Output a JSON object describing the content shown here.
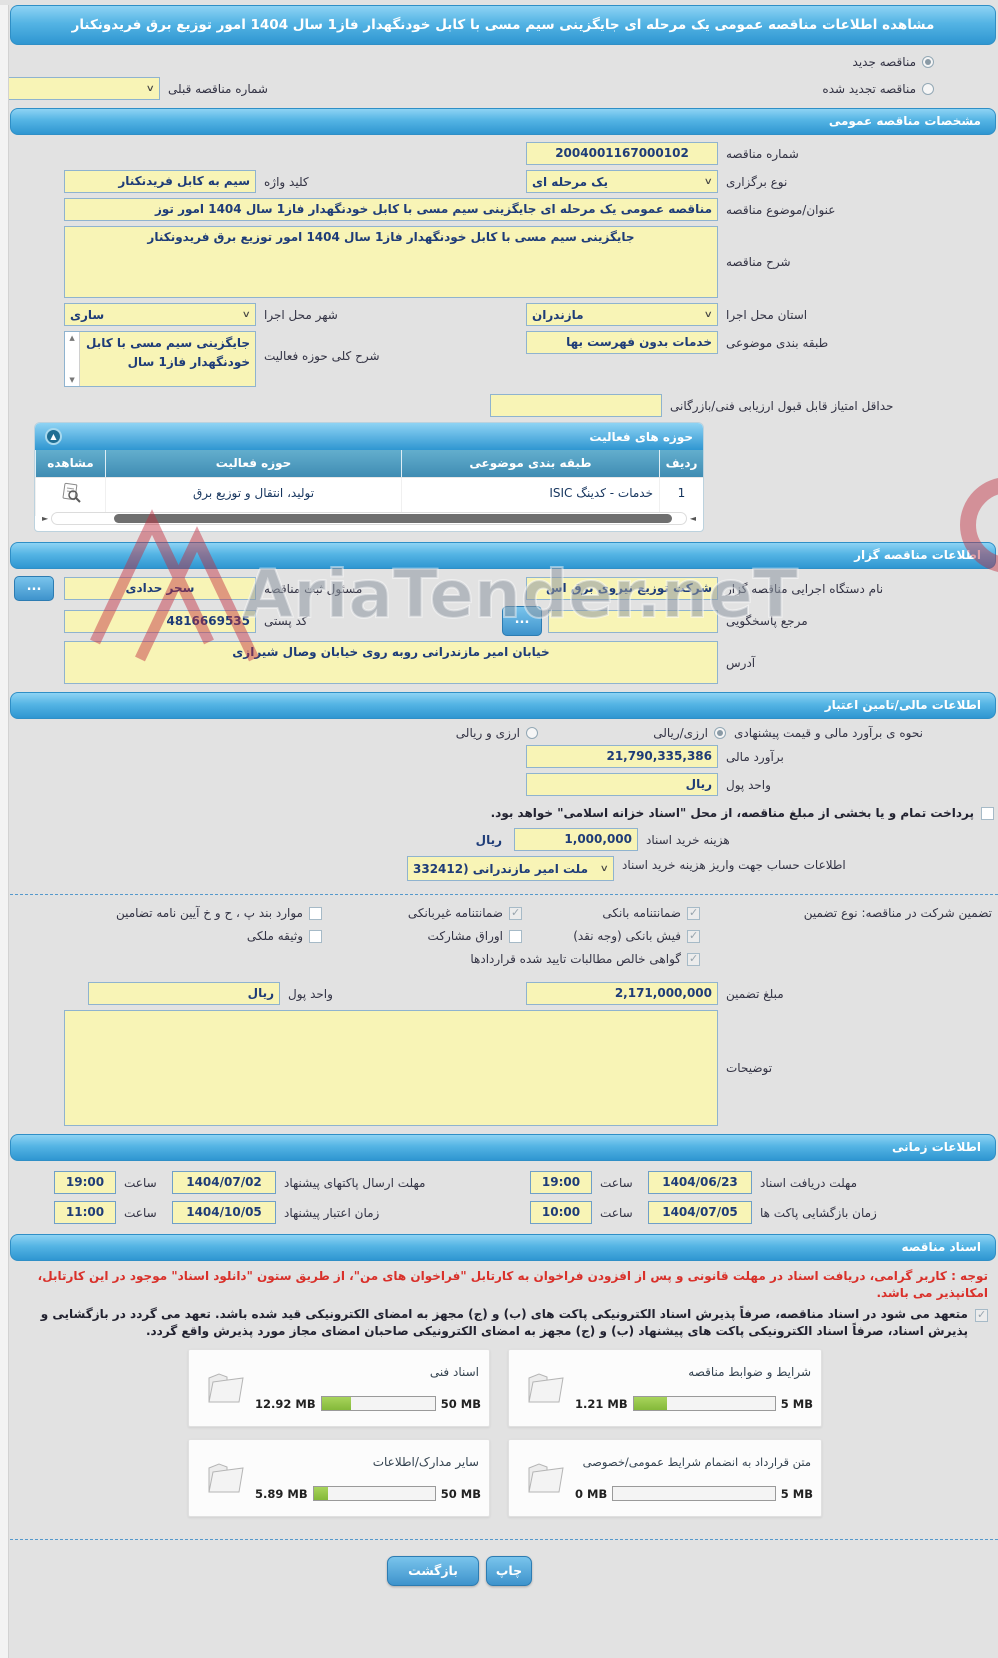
{
  "colors": {
    "accent_blue": "#3e93cc",
    "field_yellow": "#f8f4b6",
    "progress_green": "#8fc43f",
    "notice_red": "#d9302a",
    "header_gradient_top": "#8ed3f4",
    "header_gradient_bottom": "#2f96d1"
  },
  "header": {
    "title": "مشاهده اطلاعات مناقصه عمومی یک مرحله ای جایگزینی سیم مسی با کابل خودنگهدار فاز1 سال 1404 امور توزیع برق فریدونکنار"
  },
  "top": {
    "radio_new": "مناقصه جدید",
    "radio_renewed": "مناقصه تجدید شده",
    "prev_label": "شماره مناقصه قبلی",
    "prev_value": "--"
  },
  "general": {
    "section_title": "مشخصات مناقصه عمومی",
    "tender_no_label": "شماره مناقصه",
    "tender_no": "2004001167000102",
    "type_label": "نوع برگزاری",
    "type_value": "یک مرحله ای",
    "keyword_label": "کلید واژه",
    "keyword_value": "سیم به کابل فریدنکنار",
    "subject_label": "عنوان/موضوع مناقصه",
    "subject_value": "مناقصه عمومی یک مرحله ای جایگزینی سیم مسی با کابل خودنگهدار فاز1 سال 1404 امور توز",
    "desc_label": "شرح مناقصه",
    "desc_value": "جایگزینی سیم مسی با کابل خودنگهدار فاز1 سال 1404 امور توزیع برق فریدونکنار",
    "province_label": "استان محل اجرا",
    "province_value": "مازندران",
    "city_label": "شهر محل اجرا",
    "city_value": "ساری",
    "category_label": "طبقه بندی موضوعی",
    "category_value": "خدمات بدون فهرست بها",
    "activity_label": "شرح کلی حوزه فعالیت",
    "activity_value": "جایگزینی سیم مسی با کابل خودنگهدار فاز1 سال",
    "min_score_label": "حداقل امتیاز قابل قبول ارزیابی فنی/بازرگانی"
  },
  "activity_table": {
    "title": "حوزه های فعالیت",
    "col_row": "ردیف",
    "col_category": "طبقه بندی موضوعی",
    "col_field": "حوزه فعالیت",
    "col_view": "مشاهده",
    "rows": [
      {
        "index": "1",
        "category": "خدمات - کدینگ ISIC",
        "field": "تولید، انتقال و توزیع برق"
      }
    ]
  },
  "tenderer": {
    "section_title": "اطلاعات مناقصه گزار",
    "agency_label": "نام دستگاه اجرایی مناقصه گزار",
    "agency_value": "شرکت توزیع نیروی برق اس",
    "registrar_label": "مسئول ثبت مناقصه",
    "registrar_value": "سحر حدادی",
    "dots": "...",
    "ref_label": "مرجع پاسخگویی",
    "ref_value": "",
    "postal_label": "کد پستی",
    "postal_value": "4816669535",
    "address_label": "آدرس",
    "address_value": "خیابان امیر مازندرانی روبه روی خیابان وصال شیرازی"
  },
  "financial": {
    "section_title": "اطلاعات مالی/تامین اعتبار",
    "method_label": "نحوه ی برآورد مالی و قیمت پیشنهادی",
    "method_opt1": "ارزی/ریالی",
    "method_opt2": "ارزی و ریالی",
    "estimate_label": "برآورد مالی",
    "estimate_value": "21,790,335,386",
    "currency_label": "واحد پول",
    "currency_value": "ریال",
    "treasury_note": "پرداخت تمام و یا بخشی از مبلغ مناقصه، از محل \"اسناد خزانه اسلامی\" خواهد بود.",
    "doc_fee_label": "هزینه خرید اسناد",
    "doc_fee_value": "1,000,000",
    "doc_fee_unit": "ریال",
    "account_label": "اطلاعات حساب جهت واریز هزینه خرید اسناد",
    "account_value": "ملت امیر مازندرانی (332412"
  },
  "guarantee": {
    "row_label": "تضمین شرکت در مناقصه:",
    "type_label": "نوع تضمین",
    "options": [
      {
        "label": "ضمانتنامه بانکی",
        "checked": true
      },
      {
        "label": "ضمانتنامه غیربانکی",
        "checked": true
      },
      {
        "label": "موارد بند پ ، ح و خ آیین نامه تضامین",
        "checked": false
      },
      {
        "label": "فیش بانکی (وجه نقد)",
        "checked": true
      },
      {
        "label": "اوراق مشارکت",
        "checked": false
      },
      {
        "label": "وثیقه ملکی",
        "checked": false
      },
      {
        "label": "گواهی خالص مطالبات تایید شده قراردادها",
        "checked": true
      }
    ],
    "amount_label": "مبلغ تضمین",
    "amount_value": "2,171,000,000",
    "currency_label": "واحد پول",
    "currency_value": "ریال",
    "notes_label": "توضیحات"
  },
  "timing": {
    "section_title": "اطلاعات زمانی",
    "hour_label": "ساعت",
    "rows": [
      {
        "label": "مهلت دریافت اسناد",
        "date": "1404/06/23",
        "time": "19:00"
      },
      {
        "label": "مهلت ارسال پاکتهای پیشنهاد",
        "date": "1404/07/02",
        "time": "19:00"
      },
      {
        "label": "زمان بازگشایی پاکت ها",
        "date": "1404/07/05",
        "time": "10:00"
      },
      {
        "label": "زمان اعتبار پیشنهاد",
        "date": "1404/10/05",
        "time": "11:00"
      }
    ]
  },
  "docs": {
    "section_title": "اسناد مناقصه",
    "notice": "توجه : کاربر گرامی، دریافت اسناد در مهلت قانونی و پس از افزودن فراخوان به کارتابل \"فراخوان های من\"، از طریق ستون \"دانلود اسناد\" موجود در این کارتابل، امکانپذیر می باشد.",
    "pledge": "متعهد می شود در اسناد مناقصه، صرفاً پذیرش اسناد الکترونیکی پاکت های (ب) و (ج) مجهز به امضای الکترونیکی قید شده باشد. تعهد می گردد در بازگشایی و پذیرش اسناد، صرفاً اسناد الکترونیکی پاکت های پیشنهاد (ب) و (ج) مجهز به امضای الکترونیکی صاحبان امضای مجاز مورد پذیرش واقع گردد.",
    "files": [
      {
        "name": "شرایط و ضوابط مناقصه",
        "used": "1.21 MB",
        "max": "5 MB",
        "pct": 24
      },
      {
        "name": "اسناد فنی",
        "used": "12.92 MB",
        "max": "50 MB",
        "pct": 26
      },
      {
        "name": "متن قرارداد به انضمام شرایط عمومی/خصوصی",
        "used": "0 MB",
        "max": "5 MB",
        "pct": 0
      },
      {
        "name": "سایر مدارک/اطلاعات",
        "used": "5.89 MB",
        "max": "50 MB",
        "pct": 12
      }
    ]
  },
  "footer": {
    "back": "بازگشت",
    "print": "چاپ"
  },
  "watermark": {
    "text": "AriaTender.neT"
  }
}
